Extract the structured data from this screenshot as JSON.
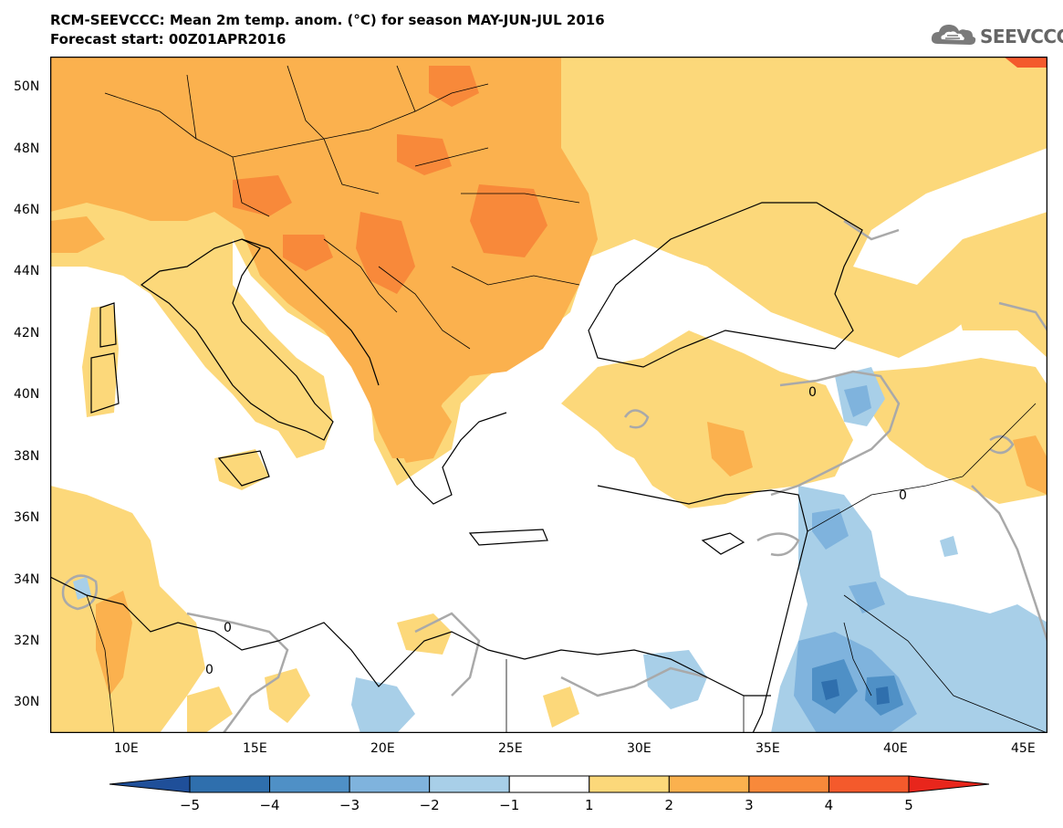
{
  "header": {
    "title": "RCM-SEEVCCC: Mean 2m temp. anom. (°C) for season MAY-JUN-JUL 2016",
    "subtitle": "Forecast start: 00Z01APR2016",
    "logo_text": "SEEVCCC"
  },
  "map": {
    "lat_labels": [
      "50N",
      "48N",
      "46N",
      "44N",
      "42N",
      "40N",
      "38N",
      "36N",
      "34N",
      "32N",
      "30N"
    ],
    "lon_labels": [
      "10E",
      "15E",
      "20E",
      "25E",
      "30E",
      "35E",
      "40E",
      "45E"
    ],
    "contour_label": "0"
  },
  "colorbar": {
    "tick_labels": [
      "−5",
      "−4",
      "−3",
      "−2",
      "−1",
      "1",
      "2",
      "3",
      "4",
      "5"
    ],
    "colors": [
      "#1f4f99",
      "#2f6fad",
      "#4f90c6",
      "#7fb3dd",
      "#a8cfe8",
      "#ffffff",
      "#fcd87a",
      "#fbb14e",
      "#f8893a",
      "#f45a2c",
      "#e8261c"
    ]
  }
}
